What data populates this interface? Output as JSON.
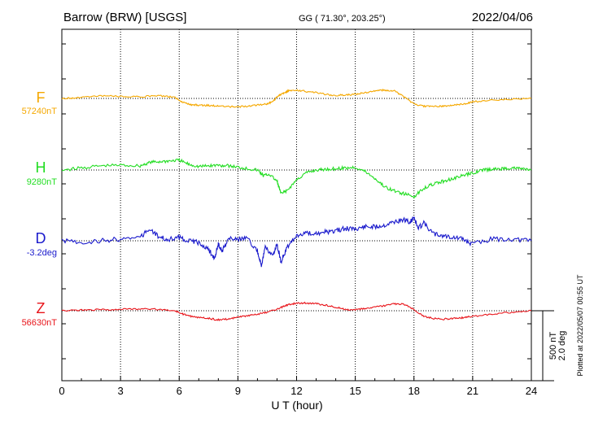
{
  "header": {
    "station": "Barrow (BRW)  [USGS]",
    "coords": "GG ( 71.30°, 203.25°)",
    "date": "2022/04/06"
  },
  "side_note": "Plotted at 2022/05/07 00:55 UT",
  "scale_bar": {
    "line1": "500 nT",
    "line2": "2.0 deg"
  },
  "colors": {
    "F": "#f5a800",
    "H": "#22dd22",
    "D": "#1a1acc",
    "Z": "#e8141a",
    "grid": "#000000"
  },
  "chart_data": {
    "type": "line",
    "xlabel": "U T (hour)",
    "xlim": [
      0,
      24
    ],
    "x_ticks": [
      0,
      3,
      6,
      9,
      12,
      15,
      18,
      21,
      24
    ],
    "grid": "dotted vertical every 3 h, dotted baselines",
    "series": [
      {
        "name": "F",
        "baseline_label": "57240nT",
        "unit": "nT",
        "baseline": 57240,
        "x": [
          0,
          0.5,
          1,
          2,
          3,
          4,
          5,
          5.8,
          6.2,
          6.6,
          7,
          7.5,
          8,
          8.5,
          9,
          9.5,
          10,
          10.5,
          10.8,
          11,
          11.2,
          11.4,
          11.6,
          12,
          12.5,
          13,
          13.5,
          14,
          14.5,
          15,
          15.5,
          16,
          16.5,
          17,
          17.5,
          18,
          18.5,
          19,
          19.5,
          20,
          20.5,
          21,
          22,
          23,
          24
        ],
        "values": [
          0,
          2,
          8,
          20,
          15,
          12,
          20,
          6,
          -30,
          -45,
          -48,
          -50,
          -55,
          -58,
          -60,
          -55,
          -48,
          -40,
          -20,
          10,
          30,
          45,
          55,
          60,
          50,
          40,
          30,
          20,
          25,
          30,
          40,
          55,
          60,
          55,
          10,
          -40,
          -55,
          -58,
          -55,
          -50,
          -40,
          -25,
          -10,
          -5,
          0
        ]
      },
      {
        "name": "H",
        "baseline_label": "9280nT",
        "unit": "nT",
        "baseline": 9280,
        "x": [
          0,
          1,
          2,
          3,
          4,
          4.5,
          5,
          5.5,
          6,
          6.5,
          7,
          7.5,
          8,
          8.5,
          9,
          9.5,
          10,
          10.3,
          10.6,
          11,
          11.2,
          11.5,
          12,
          12.5,
          13,
          13.5,
          14,
          14.5,
          15,
          15.5,
          16,
          16.5,
          17,
          17.5,
          18,
          18.5,
          19,
          19.5,
          20,
          20.5,
          21,
          21.5,
          22,
          22.5,
          23,
          23.5,
          24
        ],
        "values": [
          0,
          15,
          30,
          35,
          30,
          55,
          60,
          65,
          70,
          40,
          25,
          30,
          35,
          30,
          20,
          10,
          0,
          -40,
          -30,
          -80,
          -170,
          -150,
          -70,
          -20,
          0,
          5,
          10,
          15,
          20,
          -10,
          -60,
          -120,
          -150,
          -170,
          -190,
          -130,
          -100,
          -80,
          -60,
          -40,
          -20,
          0,
          5,
          10,
          15,
          10,
          0
        ]
      },
      {
        "name": "D",
        "baseline_label": "-3.2deg",
        "unit": "deg",
        "baseline": -3.2,
        "x": [
          0,
          1,
          2,
          3,
          4,
          4.5,
          5,
          5.5,
          6,
          6.5,
          7,
          7.5,
          7.8,
          8,
          8.2,
          8.5,
          9,
          9.5,
          10,
          10.2,
          10.4,
          10.8,
          11,
          11.2,
          11.5,
          12,
          12.5,
          13,
          13.5,
          14,
          14.5,
          15,
          15.5,
          16,
          16.5,
          17,
          17.5,
          17.8,
          18,
          18.2,
          18.5,
          19,
          19.5,
          20,
          20.5,
          21,
          22,
          23,
          24
        ],
        "values": [
          0,
          -0.05,
          0,
          0.05,
          0.1,
          0.35,
          0.1,
          0.05,
          0.1,
          0,
          -0.05,
          -0.25,
          -0.5,
          -0.1,
          -0.3,
          0.05,
          0.05,
          0.05,
          -0.3,
          -0.7,
          -0.2,
          -0.4,
          -0.1,
          -0.6,
          -0.2,
          0.15,
          0.25,
          0.2,
          0.25,
          0.3,
          0.35,
          0.35,
          0.4,
          0.4,
          0.45,
          0.55,
          0.6,
          0.5,
          0.7,
          0.35,
          0.5,
          0.2,
          0.15,
          0.1,
          0.05,
          -0.1,
          0.05,
          0.05,
          0
        ]
      },
      {
        "name": "Z",
        "baseline_label": "56630nT",
        "unit": "nT",
        "baseline": 56630,
        "x": [
          0,
          1,
          2,
          3,
          4,
          5,
          5.8,
          6.2,
          6.6,
          7,
          7.5,
          8,
          8.5,
          9,
          9.5,
          10,
          10.5,
          11,
          11.3,
          11.6,
          12,
          12.5,
          13,
          13.5,
          14,
          14.5,
          15,
          15.5,
          16,
          16.5,
          17,
          17.5,
          18,
          18.5,
          19,
          19.5,
          20,
          20.5,
          21,
          22,
          23,
          24
        ],
        "values": [
          0,
          5,
          8,
          10,
          12,
          10,
          0,
          -25,
          -40,
          -48,
          -55,
          -65,
          -60,
          -45,
          -35,
          -25,
          -10,
          10,
          30,
          45,
          55,
          55,
          50,
          40,
          25,
          10,
          5,
          15,
          25,
          35,
          50,
          45,
          10,
          -40,
          -55,
          -60,
          -55,
          -50,
          -40,
          -25,
          -10,
          0
        ]
      }
    ]
  }
}
